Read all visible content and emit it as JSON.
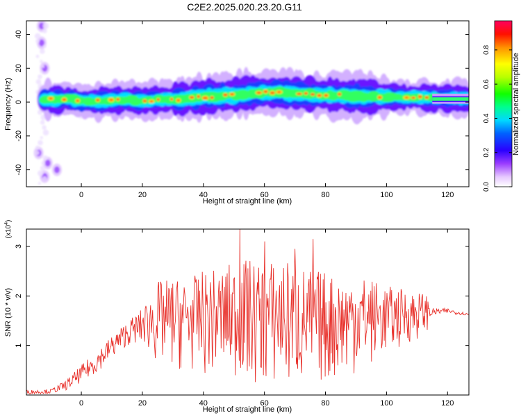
{
  "title": "C2E2.2025.020.23.20.G11",
  "chart_data": [
    {
      "type": "heatmap",
      "xlabel": "Height of straight line (km)",
      "ylabel": "Frequency (Hz)",
      "xlim": [
        -18,
        127
      ],
      "ylim": [
        -50,
        48
      ],
      "xticks": [
        0,
        20,
        40,
        60,
        80,
        100,
        120
      ],
      "yticks": [
        -40,
        -20,
        0,
        20,
        40
      ],
      "colorbar": {
        "label": "Normalized spectral amplitude",
        "ticks": [
          0.0,
          0.2,
          0.4,
          0.6,
          0.8
        ],
        "tick_labels": [
          "0.0",
          "0.2",
          "0.4",
          "0.6",
          "0.8"
        ],
        "range": [
          0,
          0.97
        ]
      },
      "ridge": {
        "height_km": [
          -12,
          -8,
          -4,
          0,
          5,
          10,
          15,
          20,
          25,
          30,
          35,
          40,
          45,
          50,
          55,
          60,
          65,
          70,
          75,
          80,
          85,
          90,
          95,
          100,
          105,
          110,
          115,
          120,
          127
        ],
        "frequency_hz": [
          1.5,
          1.5,
          2.0,
          0.5,
          0.5,
          1.0,
          1.5,
          0.5,
          1.5,
          1.5,
          2.0,
          3.0,
          3.5,
          4.0,
          5.0,
          5.5,
          6.0,
          5.0,
          4.5,
          4.0,
          4.0,
          3.5,
          3.5,
          3.0,
          3.0,
          3.0,
          2.5,
          2.0,
          2.0
        ]
      },
      "low_altitude_patches": [
        {
          "height_km": -13,
          "frequency_hz": 45
        },
        {
          "height_km": -13,
          "frequency_hz": 35
        },
        {
          "height_km": -12,
          "frequency_hz": 20
        },
        {
          "height_km": -14,
          "frequency_hz": -30
        },
        {
          "height_km": -11,
          "frequency_hz": -36
        },
        {
          "height_km": -8,
          "frequency_hz": -40
        },
        {
          "height_km": -12,
          "frequency_hz": -44
        }
      ]
    },
    {
      "type": "line",
      "xlabel": "Height of straight line (km)",
      "ylabel": "SNR (10 * v/v)",
      "multiplier": "(x10",
      "multiplier_exp": "4",
      "multiplier_close": ")",
      "xlim": [
        -18,
        127
      ],
      "ylim": [
        0,
        3.35
      ],
      "xticks": [
        0,
        20,
        40,
        60,
        80,
        100,
        120
      ],
      "yticks": [
        1,
        2,
        3
      ],
      "color": "#e8322c",
      "envelope": {
        "height_km": [
          -18,
          -10,
          -5,
          0,
          5,
          10,
          15,
          20,
          25,
          30,
          35,
          40,
          45,
          50,
          55,
          60,
          65,
          70,
          75,
          80,
          85,
          90,
          95,
          100,
          105,
          110,
          113,
          115,
          120,
          127
        ],
        "upper": [
          0.1,
          0.12,
          0.3,
          0.6,
          0.9,
          1.2,
          1.5,
          1.75,
          2.3,
          2.35,
          2.35,
          2.5,
          2.55,
          2.7,
          2.75,
          2.65,
          2.8,
          2.65,
          2.55,
          2.5,
          2.4,
          2.45,
          2.35,
          2.2,
          2.15,
          2.1,
          2.05,
          1.75,
          1.75,
          1.65
        ],
        "lower": [
          0.02,
          0.03,
          0.1,
          0.25,
          0.45,
          0.75,
          1.0,
          1.05,
          0.55,
          0.5,
          0.45,
          0.4,
          0.35,
          0.3,
          0.15,
          0.12,
          0.1,
          0.1,
          0.15,
          0.2,
          0.3,
          0.45,
          0.6,
          0.8,
          0.95,
          1.1,
          1.25,
          1.6,
          1.65,
          1.6
        ]
      },
      "peaks": [
        {
          "height_km": 52,
          "snr": 3.35
        },
        {
          "height_km": 60,
          "snr": 3.1
        },
        {
          "height_km": 76,
          "snr": 3.15
        },
        {
          "height_km": 70,
          "snr": 2.95
        }
      ]
    }
  ]
}
